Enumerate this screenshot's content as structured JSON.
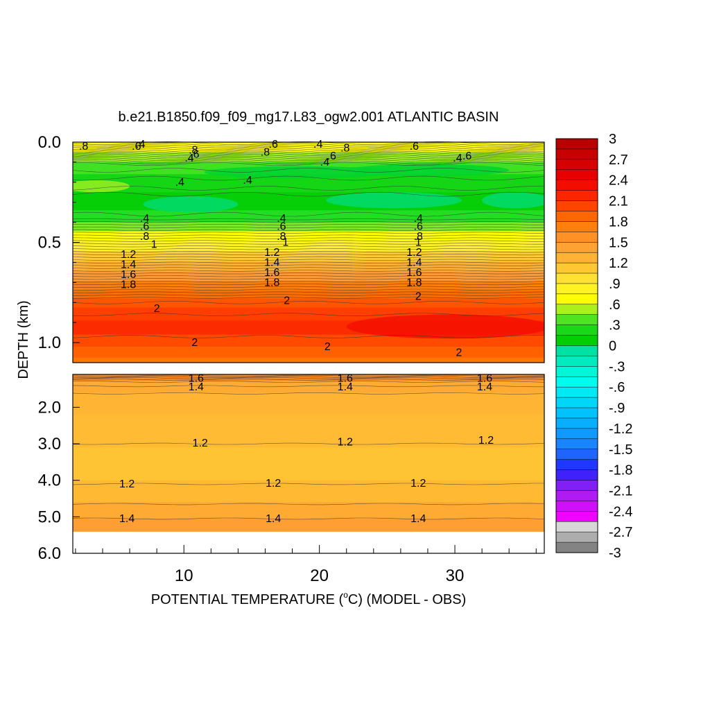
{
  "chart_data": {
    "type": "heatmap",
    "title": "b.e21.B1850.f09_f09_mg17.L83_ogw2.001 ATLANTIC BASIN",
    "xlabel_prefix": "POTENTIAL TEMPERATURE (",
    "xlabel_sup": "o",
    "xlabel_suffix": "C) (MODEL - OBS)",
    "ylabel": "DEPTH (km)",
    "xlim": [
      1.8,
      36.6
    ],
    "x_ticks": [
      "10",
      "20",
      "30"
    ],
    "x_tick_values": [
      10,
      20,
      30
    ],
    "upper_panel": {
      "ylim": [
        0.0,
        1.1
      ],
      "y_ticks": [
        "0.0",
        "0.5",
        "1.0"
      ],
      "y_tick_values": [
        0.0,
        0.5,
        1.0
      ]
    },
    "lower_panel": {
      "ylim": [
        1.1,
        6.0
      ],
      "y_ticks": [
        "2.0",
        "3.0",
        "4.0",
        "5.0",
        "6.0"
      ],
      "y_tick_values": [
        2.0,
        3.0,
        4.0,
        5.0,
        6.0
      ],
      "data_bottom_depth": 5.4
    },
    "upper_profile": [
      {
        "depth": 0.02,
        "value": 0.75
      },
      {
        "depth": 0.08,
        "value": 0.5
      },
      {
        "depth": 0.12,
        "value": 0.35
      },
      {
        "depth": 0.2,
        "value": 0.2
      },
      {
        "depth": 0.3,
        "value": 0.1
      },
      {
        "depth": 0.38,
        "value": 0.3
      },
      {
        "depth": 0.42,
        "value": 0.45
      },
      {
        "depth": 0.47,
        "value": 0.65
      },
      {
        "depth": 0.52,
        "value": 0.85
      },
      {
        "depth": 0.57,
        "value": 1.1
      },
      {
        "depth": 0.62,
        "value": 1.3
      },
      {
        "depth": 0.67,
        "value": 1.5
      },
      {
        "depth": 0.72,
        "value": 1.75
      },
      {
        "depth": 0.76,
        "value": 1.85
      },
      {
        "depth": 0.8,
        "value": 1.95
      },
      {
        "depth": 0.85,
        "value": 2.05
      },
      {
        "depth": 0.93,
        "value": 2.15
      },
      {
        "depth": 0.99,
        "value": 2.0
      },
      {
        "depth": 1.05,
        "value": 1.9
      },
      {
        "depth": 1.1,
        "value": 1.8
      }
    ],
    "lower_profile": [
      {
        "depth": 1.15,
        "value": 1.6
      },
      {
        "depth": 1.4,
        "value": 1.35
      },
      {
        "depth": 1.8,
        "value": 1.25
      },
      {
        "depth": 2.6,
        "value": 1.2
      },
      {
        "depth": 3.6,
        "value": 1.15
      },
      {
        "depth": 4.4,
        "value": 1.22
      },
      {
        "depth": 4.8,
        "value": 1.35
      },
      {
        "depth": 5.3,
        "value": 1.45
      }
    ],
    "contour_labels": [
      {
        "text": ".8",
        "x": 2.6,
        "y": 0.02,
        "panel": "upper"
      },
      {
        "text": ".6",
        "x": 6.5,
        "y": 0.02,
        "panel": "upper"
      },
      {
        "text": ".4",
        "x": 6.8,
        "y": 0.01,
        "panel": "upper"
      },
      {
        "text": ".8",
        "x": 10.7,
        "y": 0.04,
        "panel": "upper"
      },
      {
        "text": ".6",
        "x": 10.8,
        "y": 0.06,
        "panel": "upper"
      },
      {
        "text": ".4",
        "x": 10.4,
        "y": 0.08,
        "panel": "upper"
      },
      {
        "text": ".6",
        "x": 16.6,
        "y": 0.01,
        "panel": "upper"
      },
      {
        "text": ".8",
        "x": 16.0,
        "y": 0.05,
        "panel": "upper"
      },
      {
        "text": ".4",
        "x": 19.9,
        "y": 0.01,
        "panel": "upper"
      },
      {
        "text": ".8",
        "x": 21.9,
        "y": 0.03,
        "panel": "upper"
      },
      {
        "text": ".6",
        "x": 20.9,
        "y": 0.07,
        "panel": "upper"
      },
      {
        "text": ".4",
        "x": 20.4,
        "y": 0.1,
        "panel": "upper"
      },
      {
        "text": ".6",
        "x": 27.0,
        "y": 0.02,
        "panel": "upper"
      },
      {
        "text": ".6",
        "x": 30.9,
        "y": 0.07,
        "panel": "upper"
      },
      {
        "text": ".4",
        "x": 30.2,
        "y": 0.08,
        "panel": "upper"
      },
      {
        "text": ".4",
        "x": 9.7,
        "y": 0.2,
        "panel": "upper"
      },
      {
        "text": ".4",
        "x": 14.7,
        "y": 0.19,
        "panel": "upper"
      },
      {
        "text": ".4",
        "x": 7.1,
        "y": 0.38,
        "panel": "upper"
      },
      {
        "text": ".6",
        "x": 7.1,
        "y": 0.42,
        "panel": "upper"
      },
      {
        "text": ".8",
        "x": 7.1,
        "y": 0.47,
        "panel": "upper"
      },
      {
        "text": "1",
        "x": 7.8,
        "y": 0.51,
        "panel": "upper"
      },
      {
        "text": "1.2",
        "x": 5.9,
        "y": 0.56,
        "panel": "upper"
      },
      {
        "text": "1.4",
        "x": 5.9,
        "y": 0.61,
        "panel": "upper"
      },
      {
        "text": "1.6",
        "x": 5.9,
        "y": 0.66,
        "panel": "upper"
      },
      {
        "text": "1.8",
        "x": 5.9,
        "y": 0.71,
        "panel": "upper"
      },
      {
        "text": ".4",
        "x": 17.2,
        "y": 0.38,
        "panel": "upper"
      },
      {
        "text": ".6",
        "x": 17.2,
        "y": 0.42,
        "panel": "upper"
      },
      {
        "text": ".8",
        "x": 17.2,
        "y": 0.47,
        "panel": "upper"
      },
      {
        "text": "1",
        "x": 17.5,
        "y": 0.5,
        "panel": "upper"
      },
      {
        "text": "1.2",
        "x": 16.5,
        "y": 0.55,
        "panel": "upper"
      },
      {
        "text": "1.4",
        "x": 16.5,
        "y": 0.6,
        "panel": "upper"
      },
      {
        "text": "1.6",
        "x": 16.5,
        "y": 0.65,
        "panel": "upper"
      },
      {
        "text": "1.8",
        "x": 16.5,
        "y": 0.7,
        "panel": "upper"
      },
      {
        "text": "2",
        "x": 17.6,
        "y": 0.79,
        "panel": "upper"
      },
      {
        "text": ".4",
        "x": 27.3,
        "y": 0.38,
        "panel": "upper"
      },
      {
        "text": ".6",
        "x": 27.3,
        "y": 0.42,
        "panel": "upper"
      },
      {
        "text": ".8",
        "x": 27.3,
        "y": 0.47,
        "panel": "upper"
      },
      {
        "text": "1",
        "x": 27.3,
        "y": 0.5,
        "panel": "upper"
      },
      {
        "text": "1.2",
        "x": 27.0,
        "y": 0.55,
        "panel": "upper"
      },
      {
        "text": "1.4",
        "x": 27.0,
        "y": 0.6,
        "panel": "upper"
      },
      {
        "text": "1.6",
        "x": 27.0,
        "y": 0.65,
        "panel": "upper"
      },
      {
        "text": "1.8",
        "x": 27.0,
        "y": 0.7,
        "panel": "upper"
      },
      {
        "text": "2",
        "x": 27.3,
        "y": 0.77,
        "panel": "upper"
      },
      {
        "text": "2",
        "x": 8.0,
        "y": 0.83,
        "panel": "upper"
      },
      {
        "text": "2",
        "x": 10.8,
        "y": 1.0,
        "panel": "upper"
      },
      {
        "text": "2",
        "x": 20.6,
        "y": 1.02,
        "panel": "upper"
      },
      {
        "text": "2",
        "x": 30.3,
        "y": 1.05,
        "panel": "upper"
      },
      {
        "text": "1.6",
        "x": 10.9,
        "y": 1.2,
        "panel": "lower"
      },
      {
        "text": "1.4",
        "x": 10.9,
        "y": 1.44,
        "panel": "lower"
      },
      {
        "text": "1.6",
        "x": 21.9,
        "y": 1.2,
        "panel": "lower"
      },
      {
        "text": "1.4",
        "x": 21.9,
        "y": 1.44,
        "panel": "lower"
      },
      {
        "text": "1.6",
        "x": 32.2,
        "y": 1.2,
        "panel": "lower"
      },
      {
        "text": "1.4",
        "x": 32.2,
        "y": 1.44,
        "panel": "lower"
      },
      {
        "text": "1.2",
        "x": 11.2,
        "y": 2.98,
        "panel": "lower"
      },
      {
        "text": "1.2",
        "x": 21.9,
        "y": 2.95,
        "panel": "lower"
      },
      {
        "text": "1.2",
        "x": 32.3,
        "y": 2.9,
        "panel": "lower"
      },
      {
        "text": "1.2",
        "x": 5.8,
        "y": 4.1,
        "panel": "lower"
      },
      {
        "text": "1.2",
        "x": 16.6,
        "y": 4.08,
        "panel": "lower"
      },
      {
        "text": "1.2",
        "x": 27.3,
        "y": 4.08,
        "panel": "lower"
      },
      {
        "text": "1.4",
        "x": 5.8,
        "y": 5.05,
        "panel": "lower"
      },
      {
        "text": "1.4",
        "x": 16.6,
        "y": 5.05,
        "panel": "lower"
      },
      {
        "text": "1.4",
        "x": 27.3,
        "y": 5.05,
        "panel": "lower"
      }
    ],
    "colorbar": {
      "min": -3,
      "max": 3,
      "step": 0.15,
      "labels": [
        "3",
        "2.7",
        "2.4",
        "2.1",
        "1.8",
        "1.5",
        "1.2",
        ".9",
        ".6",
        ".3",
        "0",
        "-.3",
        "-.6",
        "-.9",
        "-1.2",
        "-1.5",
        "-1.8",
        "-2.1",
        "-2.4",
        "-2.7",
        "-3"
      ],
      "label_values": [
        3,
        2.7,
        2.4,
        2.1,
        1.8,
        1.5,
        1.2,
        0.9,
        0.6,
        0.3,
        0,
        -0.3,
        -0.6,
        -0.9,
        -1.2,
        -1.5,
        -1.8,
        -2.1,
        -2.4,
        -2.7,
        -3
      ]
    },
    "colormap": [
      {
        "value": -3.0,
        "color": "#6e6e6e"
      },
      {
        "value": -2.62,
        "color": "#d8d8d8"
      },
      {
        "value": -2.55,
        "color": "#ff00ff"
      },
      {
        "value": -2.1,
        "color": "#a020f0"
      },
      {
        "value": -1.8,
        "color": "#2020ff"
      },
      {
        "value": -1.5,
        "color": "#1e7bff"
      },
      {
        "value": -1.0,
        "color": "#00c0ff"
      },
      {
        "value": -0.5,
        "color": "#00ffee"
      },
      {
        "value": -0.05,
        "color": "#00e0a0"
      },
      {
        "value": 0.05,
        "color": "#00cc00"
      },
      {
        "value": 0.3,
        "color": "#22dd22"
      },
      {
        "value": 0.5,
        "color": "#99ee22"
      },
      {
        "value": 0.65,
        "color": "#ffff00"
      },
      {
        "value": 0.9,
        "color": "#ffee33"
      },
      {
        "value": 1.2,
        "color": "#ffbb33"
      },
      {
        "value": 1.5,
        "color": "#ff9933"
      },
      {
        "value": 1.8,
        "color": "#ff7700"
      },
      {
        "value": 2.1,
        "color": "#ff3300"
      },
      {
        "value": 2.4,
        "color": "#ee0000"
      },
      {
        "value": 3.0,
        "color": "#b00000"
      }
    ]
  }
}
